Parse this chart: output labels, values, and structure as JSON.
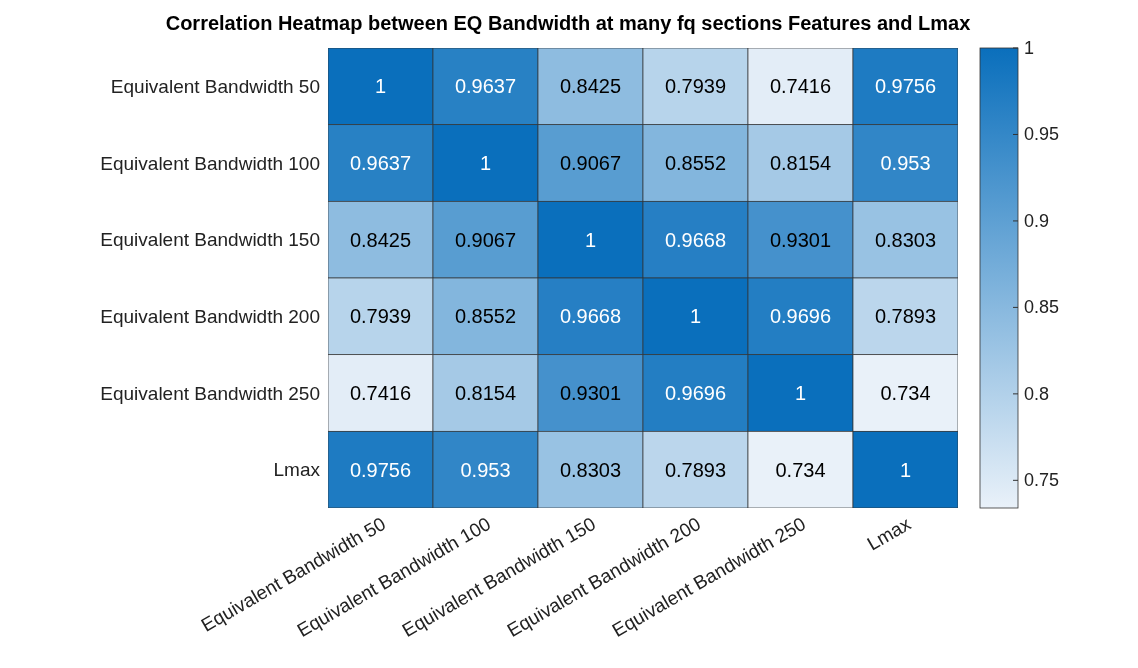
{
  "chart_data": {
    "type": "heatmap",
    "title": "Correlation Heatmap between EQ Bandwidth at many fq sections Features and Lmax",
    "categories": [
      "Equivalent Bandwidth 50",
      "Equivalent Bandwidth 100",
      "Equivalent Bandwidth 150",
      "Equivalent Bandwidth 200",
      "Equivalent Bandwidth 250",
      "Lmax"
    ],
    "y_categories": [
      "Equivalent Bandwidth 50",
      "Equivalent Bandwidth 100",
      "Equivalent Bandwidth 150",
      "Equivalent Bandwidth 200",
      "Equivalent Bandwidth 250",
      "Lmax"
    ],
    "cells": [
      [
        1,
        0.9637,
        0.8425,
        0.7939,
        0.7416,
        0.9756
      ],
      [
        0.9637,
        1,
        0.9067,
        0.8552,
        0.8154,
        0.953
      ],
      [
        0.8425,
        0.9067,
        1,
        0.9668,
        0.9301,
        0.8303
      ],
      [
        0.7939,
        0.8552,
        0.9668,
        1,
        0.9696,
        0.7893
      ],
      [
        0.7416,
        0.8154,
        0.9301,
        0.9696,
        1,
        0.734
      ],
      [
        0.9756,
        0.953,
        0.8303,
        0.7893,
        0.734,
        1
      ]
    ],
    "clim": [
      0.734,
      1
    ],
    "cticks": [
      0.75,
      0.8,
      0.85,
      0.9,
      0.95,
      1
    ],
    "data_labels": true
  }
}
